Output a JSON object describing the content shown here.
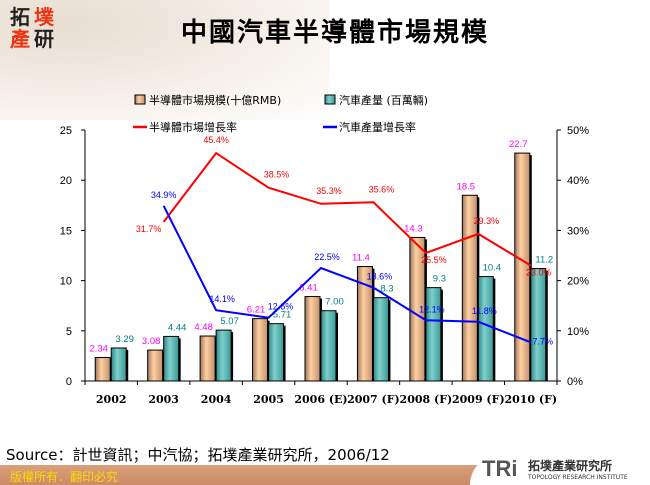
{
  "title": "中國汽車半導體市場規模",
  "logo": {
    "chars": [
      "拓",
      "墣",
      "產",
      "研"
    ]
  },
  "source": "Source：計世資訊；中汽協；拓墣產業研究所，2006/12",
  "copyright": "版權所有．翻印必究",
  "institute": {
    "mark": "TRi",
    "name_zh": "拓墣產業研究所",
    "name_en": "TOPOLOGY RESEARCH INSTITUTE"
  },
  "chart_data": {
    "type": "bar+line",
    "categories": [
      "2002",
      "2003",
      "2004",
      "2005",
      "2006 (E)",
      "2007 (F)",
      "2008 (F)",
      "2009 (F)",
      "2010 (F)"
    ],
    "y_left": {
      "range": [
        0,
        25
      ],
      "ticks": [
        0,
        5,
        10,
        15,
        20,
        25
      ]
    },
    "y_right": {
      "range": [
        0,
        50
      ],
      "ticks": [
        "0%",
        "10%",
        "20%",
        "30%",
        "40%",
        "50%"
      ]
    },
    "bar_series": [
      {
        "name": "半導體市場規模(十億RMB)",
        "color": "#f5c090",
        "label_color": "#ff00ff",
        "values": [
          2.34,
          3.08,
          4.48,
          6.21,
          8.41,
          11.4,
          14.3,
          18.5,
          22.7
        ],
        "labels": [
          "2.34",
          "3.08",
          "4.48",
          "6.21",
          "8.41",
          "11.4",
          "14.3",
          "18.5",
          "22.7"
        ]
      },
      {
        "name": "汽車產量 (百萬輛)",
        "color": "#5fb8b4",
        "label_color": "#008080",
        "values": [
          3.29,
          4.44,
          5.07,
          5.71,
          7.0,
          8.3,
          9.3,
          10.4,
          11.2
        ],
        "labels": [
          "3.29",
          "4.44",
          "5.07",
          "5.71",
          "7.00",
          "8.3",
          "9.3",
          "10.4",
          "11.2"
        ]
      }
    ],
    "line_series": [
      {
        "name": "半導體市場增長率",
        "color": "#ff0000",
        "values": [
          null,
          31.7,
          45.4,
          38.5,
          35.3,
          35.6,
          25.5,
          29.3,
          23.0
        ],
        "labels": [
          null,
          "31.7%",
          "45.4%",
          "38.5%",
          "35.3%",
          "35.6%",
          "25.5%",
          "29.3%",
          "23.0%"
        ]
      },
      {
        "name": "汽車產量增長率",
        "color": "#0000ff",
        "values": [
          null,
          34.9,
          14.1,
          12.6,
          22.5,
          18.6,
          12.1,
          11.8,
          7.7
        ],
        "labels": [
          null,
          "34.9%",
          "14.1%",
          "12.6%",
          "22.5%",
          "18.6%",
          "12.1%",
          "11.8%",
          "7.7%"
        ]
      }
    ],
    "legend": "top"
  }
}
